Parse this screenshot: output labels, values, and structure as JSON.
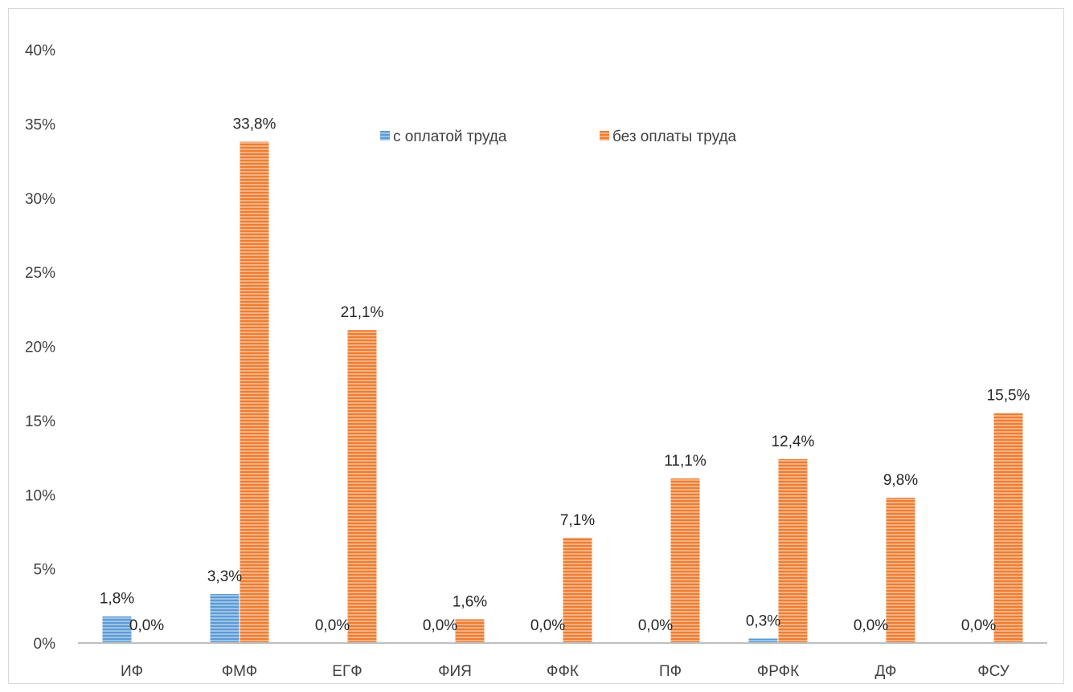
{
  "chart_data": {
    "type": "bar",
    "categories": [
      "ИФ",
      "ФМФ",
      "ЕГФ",
      "ФИЯ",
      "ФФК",
      "ПФ",
      "ФРФК",
      "ДФ",
      "ФСУ"
    ],
    "series": [
      {
        "name": "с оплатой труда",
        "color": "#5b9bd5",
        "values": [
          1.8,
          3.3,
          0.0,
          0.0,
          0.0,
          0.0,
          0.3,
          0.0,
          0.0
        ],
        "labels": [
          "1,8%",
          "3,3%",
          "0,0%",
          "0,0%",
          "0,0%",
          "0,0%",
          "0,3%",
          "0,0%",
          "0,0%"
        ]
      },
      {
        "name": "без оплаты труда",
        "color": "#ed7d31",
        "values": [
          0.0,
          33.8,
          21.1,
          1.6,
          7.1,
          11.1,
          12.4,
          9.8,
          15.5
        ],
        "labels": [
          "0,0%",
          "33,8%",
          "21,1%",
          "1,6%",
          "7,1%",
          "11,1%",
          "12,4%",
          "9,8%",
          "15,5%"
        ]
      }
    ],
    "ylim": [
      0,
      40
    ],
    "yticks": [
      "0%",
      "5%",
      "10%",
      "15%",
      "20%",
      "25%",
      "30%",
      "35%",
      "40%"
    ],
    "grid": false,
    "legend_position": "top-center",
    "bar_pattern": "horizontal-stripes"
  }
}
